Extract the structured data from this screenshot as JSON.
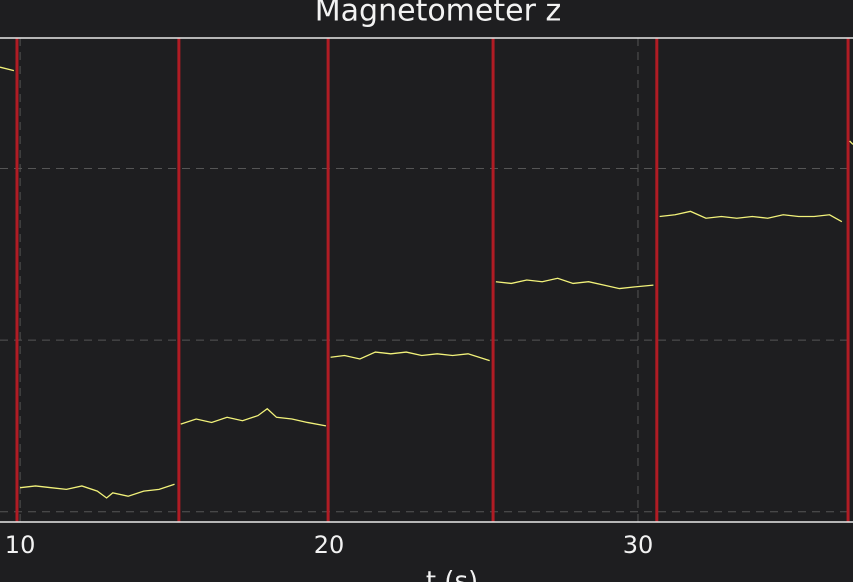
{
  "chart_data": {
    "type": "line",
    "title": "Magnetometer z",
    "xlabel": "t (s)",
    "xlim": [
      9.35,
      36.96
    ],
    "xticks": [
      10,
      20,
      30
    ],
    "ylim": [
      -0.06,
      2.76
    ],
    "yticks": [
      0,
      1,
      2
    ],
    "grid": true,
    "x": [
      9.35,
      9.8,
      9.9,
      10.0,
      10.5,
      11.0,
      11.5,
      12.0,
      12.5,
      12.8,
      13.0,
      13.5,
      14.0,
      14.5,
      15.0,
      15.1,
      15.2,
      15.7,
      16.2,
      16.7,
      17.2,
      17.7,
      18.0,
      18.3,
      18.8,
      19.3,
      19.9,
      19.95,
      20.05,
      20.5,
      21.0,
      21.5,
      22.0,
      22.5,
      23.0,
      23.5,
      24.0,
      24.5,
      25.2,
      25.3,
      25.4,
      25.9,
      26.4,
      26.9,
      27.4,
      27.9,
      28.4,
      28.9,
      29.4,
      29.9,
      30.5,
      30.6,
      30.7,
      31.2,
      31.7,
      32.2,
      32.7,
      33.2,
      33.7,
      34.2,
      34.7,
      35.2,
      35.7,
      36.2,
      36.6,
      36.7,
      36.85,
      36.96
    ],
    "series": [
      {
        "name": "Magnetometer z",
        "color": "#f2f27a",
        "values": [
          2.59,
          2.57,
          null,
          0.14,
          0.15,
          0.14,
          0.13,
          0.15,
          0.12,
          0.08,
          0.11,
          0.09,
          0.12,
          0.13,
          0.16,
          null,
          0.51,
          0.54,
          0.52,
          0.55,
          0.53,
          0.56,
          0.6,
          0.55,
          0.54,
          0.52,
          0.5,
          null,
          0.9,
          0.91,
          0.89,
          0.93,
          0.92,
          0.93,
          0.91,
          0.92,
          0.91,
          0.92,
          0.88,
          null,
          1.34,
          1.33,
          1.35,
          1.34,
          1.36,
          1.33,
          1.34,
          1.32,
          1.3,
          1.31,
          1.32,
          null,
          1.72,
          1.73,
          1.75,
          1.71,
          1.72,
          1.71,
          1.72,
          1.71,
          1.73,
          1.72,
          1.72,
          1.73,
          1.69,
          null,
          2.16,
          2.14
        ]
      }
    ],
    "events_x": [
      9.9,
      15.14,
      19.97,
      25.31,
      30.61,
      36.8
    ],
    "events_color": "#b01c24"
  }
}
